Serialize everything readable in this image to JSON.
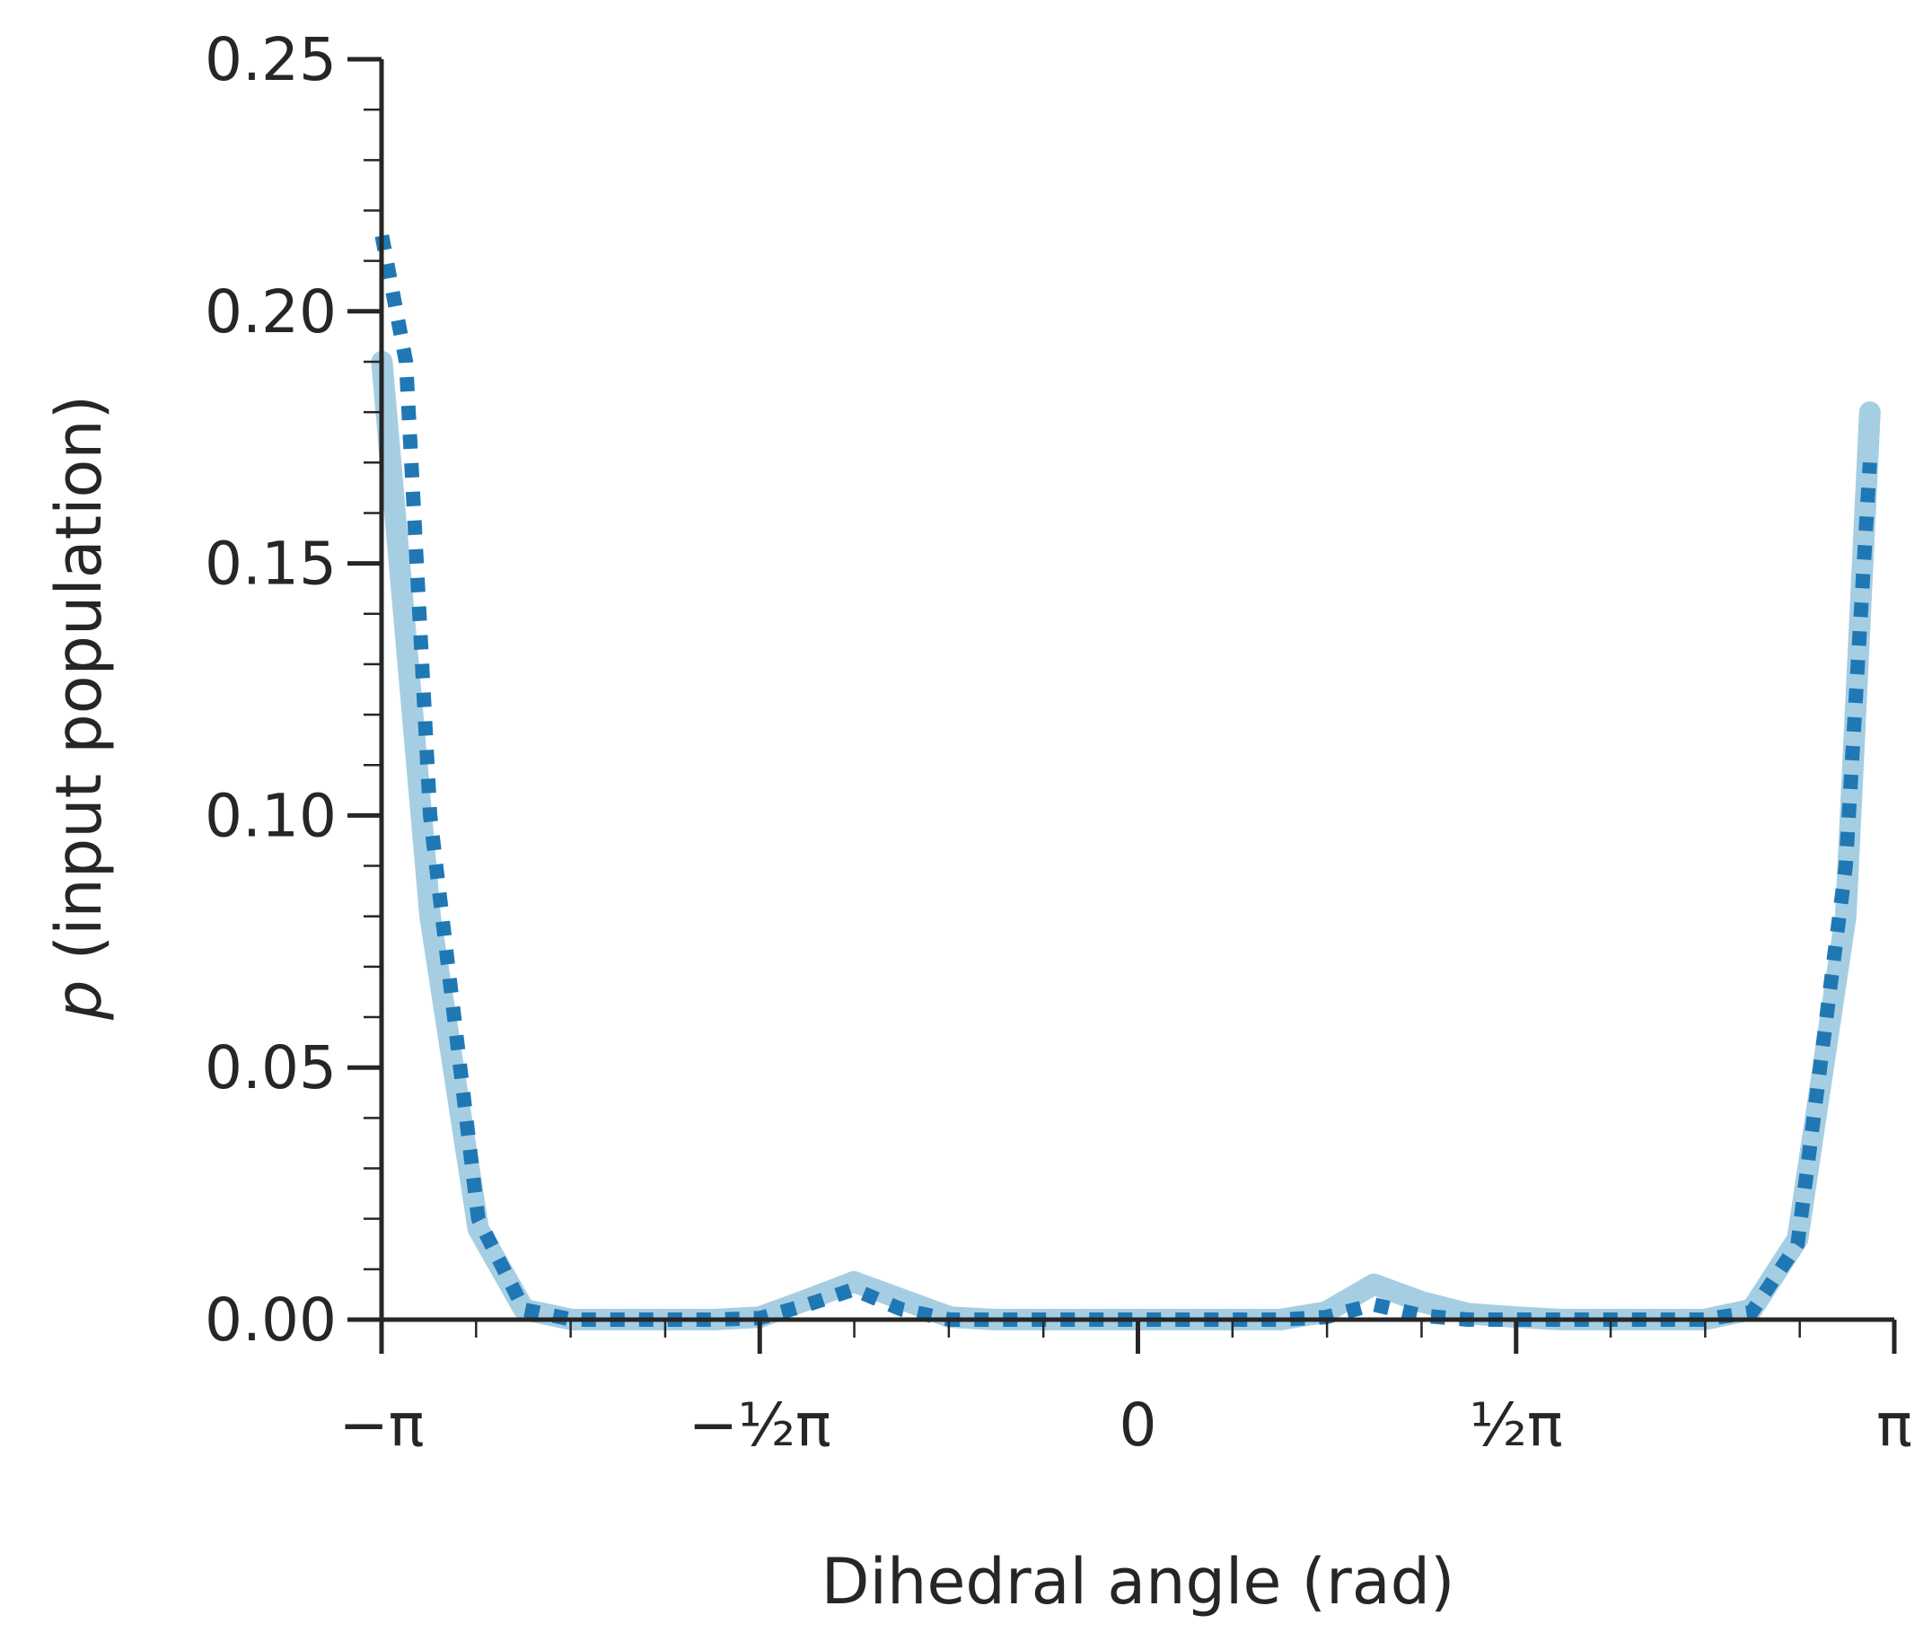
{
  "chart_data": {
    "type": "line",
    "title": "",
    "xlabel": "Dihedral angle (rad)",
    "ylabel": "p (input population)",
    "ylabel_italic_part": "p",
    "ylabel_rest": " (input population)",
    "xlim": [
      -3.1416,
      3.1416
    ],
    "ylim": [
      0,
      0.25
    ],
    "grid": false,
    "legend": "none",
    "y_ticks": [
      {
        "value": 0.0,
        "label": "0.00"
      },
      {
        "value": 0.05,
        "label": "0.05"
      },
      {
        "value": 0.1,
        "label": "0.10"
      },
      {
        "value": 0.15,
        "label": "0.15"
      },
      {
        "value": 0.2,
        "label": "0.20"
      },
      {
        "value": 0.25,
        "label": "0.25"
      }
    ],
    "x_ticks": [
      {
        "value": -3.1416,
        "label": "−π"
      },
      {
        "value": -1.5708,
        "label": "−½π"
      },
      {
        "value": 0,
        "label": "0"
      },
      {
        "value": 1.5708,
        "label": "½π"
      },
      {
        "value": 3.1416,
        "label": "π"
      }
    ],
    "series": [
      {
        "color": "#a6cee3",
        "style": "solid",
        "x": [
          -3.14,
          -2.94,
          -2.74,
          -2.55,
          -2.35,
          -2.15,
          -1.96,
          -1.76,
          -1.57,
          -1.37,
          -1.18,
          -0.98,
          -0.78,
          -0.59,
          -0.39,
          -0.2,
          0.0,
          0.2,
          0.39,
          0.59,
          0.78,
          0.98,
          1.18,
          1.37,
          1.57,
          1.76,
          1.96,
          2.15,
          2.35,
          2.55,
          2.74,
          2.94,
          3.04
        ],
        "y": [
          0.19,
          0.08,
          0.018,
          0.002,
          0.0,
          0.0,
          0.0,
          0.0,
          0.0005,
          0.004,
          0.0075,
          0.004,
          0.0005,
          0.0,
          0.0,
          0.0,
          0.0,
          0.0,
          0.0,
          0.0,
          0.0015,
          0.007,
          0.0035,
          0.0012,
          0.0005,
          0.0,
          0.0,
          0.0,
          0.0,
          0.002,
          0.016,
          0.08,
          0.18
        ]
      },
      {
        "color": "#1f78b4",
        "style": "dotted",
        "x": [
          -3.14,
          -3.04,
          -2.94,
          -2.74,
          -2.55,
          -2.35,
          -2.15,
          -1.96,
          -1.76,
          -1.57,
          -1.37,
          -1.18,
          -0.98,
          -0.78,
          -0.59,
          -0.39,
          -0.2,
          0.0,
          0.2,
          0.39,
          0.59,
          0.78,
          0.98,
          1.18,
          1.37,
          1.57,
          1.76,
          1.96,
          2.15,
          2.35,
          2.55,
          2.74,
          2.94,
          3.04
        ],
        "y": [
          0.215,
          0.19,
          0.1,
          0.02,
          0.002,
          0.0,
          0.0,
          0.0,
          0.0,
          0.0003,
          0.003,
          0.006,
          0.002,
          0.0,
          0.0,
          0.0,
          0.0,
          0.0,
          0.0,
          0.0,
          0.0,
          0.0005,
          0.003,
          0.0008,
          0.0,
          0.0,
          0.0,
          0.0,
          0.0,
          0.0,
          0.0015,
          0.015,
          0.09,
          0.17
        ]
      }
    ]
  }
}
